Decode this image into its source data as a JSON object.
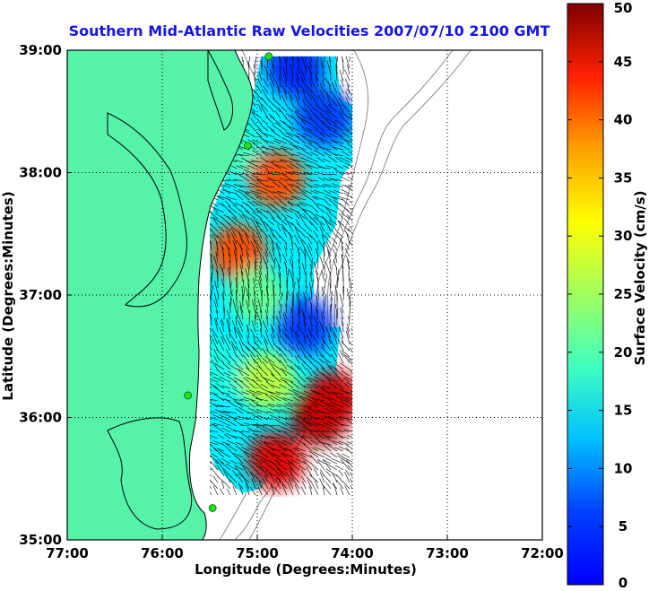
{
  "chart_data": {
    "type": "heatmap",
    "title": "Southern Mid-Atlantic Raw Velocities 2007/07/10 2100 GMT",
    "xlabel": "Longitude (Degrees:Minutes)",
    "ylabel": "Latitude (Degrees:Minutes)",
    "xlim": [
      -77,
      -72
    ],
    "ylim": [
      35,
      39
    ],
    "x_ticks": [
      {
        "value": -77,
        "label": "77:00"
      },
      {
        "value": -76,
        "label": "76:00"
      },
      {
        "value": -75,
        "label": "75:00"
      },
      {
        "value": -74,
        "label": "74:00"
      },
      {
        "value": -73,
        "label": "73:00"
      },
      {
        "value": -72,
        "label": "72:00"
      }
    ],
    "y_ticks": [
      {
        "value": 35,
        "label": "35:00"
      },
      {
        "value": 36,
        "label": "36:00"
      },
      {
        "value": 37,
        "label": "37:00"
      },
      {
        "value": 38,
        "label": "38:00"
      },
      {
        "value": 39,
        "label": "39:00"
      }
    ],
    "grid": "dotted",
    "colorbar": {
      "label": "Surface Velocity (cm/s)",
      "range": [
        0,
        50
      ],
      "ticks": [
        "0",
        "5",
        "10",
        "15",
        "20",
        "25",
        "30",
        "35",
        "40",
        "45",
        "50"
      ],
      "colormap": "jet"
    },
    "velocity_hotspots": [
      {
        "lon": -74.8,
        "lat": 37.95,
        "speed": 40
      },
      {
        "lon": -75.2,
        "lat": 37.35,
        "speed": 40
      },
      {
        "lon": -74.35,
        "lat": 36.0,
        "speed": 48
      },
      {
        "lon": -74.2,
        "lat": 36.15,
        "speed": 46
      },
      {
        "lon": -74.8,
        "lat": 35.65,
        "speed": 45
      },
      {
        "lon": -74.3,
        "lat": 38.45,
        "speed": 9
      },
      {
        "lon": -74.6,
        "lat": 38.85,
        "speed": 8
      },
      {
        "lon": -74.5,
        "lat": 36.75,
        "speed": 9
      },
      {
        "lon": -75.3,
        "lat": 38.2,
        "speed": 22
      },
      {
        "lon": -75.4,
        "lat": 36.4,
        "speed": 20
      },
      {
        "lon": -75.0,
        "lat": 37.0,
        "speed": 24
      },
      {
        "lon": -74.9,
        "lat": 36.3,
        "speed": 28
      }
    ],
    "stations": [
      {
        "lon": -74.88,
        "lat": 38.95
      },
      {
        "lon": -75.1,
        "lat": 38.22
      },
      {
        "lon": -75.73,
        "lat": 36.18
      },
      {
        "lon": -75.47,
        "lat": 35.26
      }
    ]
  },
  "colors": {
    "land": "#55f2a8",
    "land_outline": "#000000",
    "bathymetry": "#8c8c8c",
    "title": "#1515e8",
    "station": "#22dd22"
  }
}
